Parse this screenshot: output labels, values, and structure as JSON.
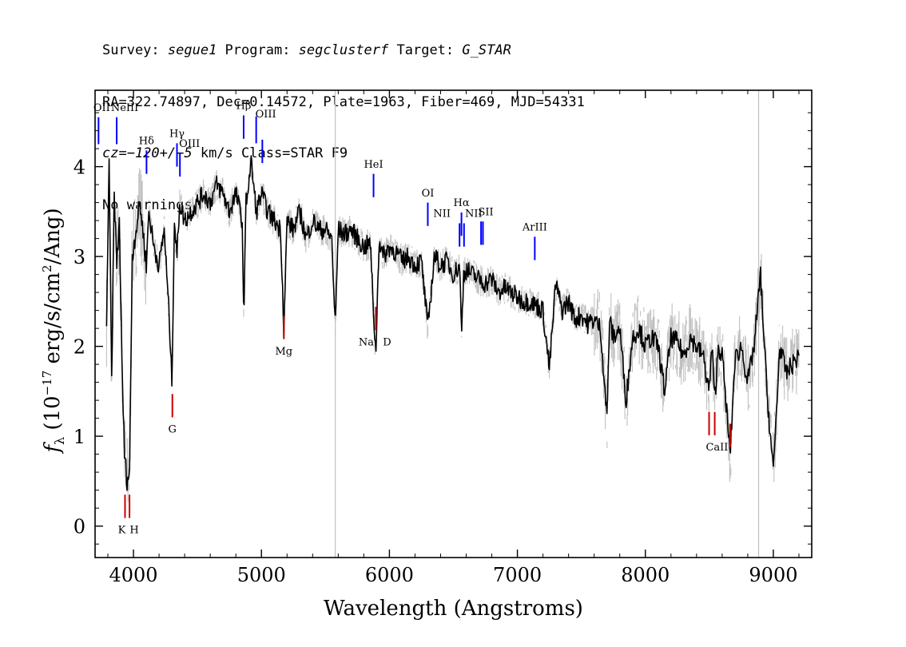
{
  "header": {
    "line1": {
      "survey_label": "Survey: ",
      "survey": "segue1",
      "program_label": " Program: ",
      "program": "segclusterf",
      "target_label": " Target: ",
      "target": "G_STAR"
    },
    "line2": "RA=322.74897, Dec=0.14572, Plate=1963, Fiber=469, MJD=54331",
    "line3": {
      "cz": "cz=−120+/−5",
      "units_class": " km/s Class=STAR F9"
    },
    "line4": "No warnings."
  },
  "chart_data": {
    "type": "line",
    "xlabel": "Wavelength (Angstroms)",
    "ylabel_parts": [
      "f",
      "λ",
      " (10",
      "−17",
      " erg/s/cm",
      "2",
      "/Ang)"
    ],
    "xlim": [
      3700,
      9300
    ],
    "ylim": [
      -0.35,
      4.85
    ],
    "x_ticks": [
      4000,
      5000,
      6000,
      7000,
      8000,
      9000
    ],
    "y_ticks": [
      0,
      1,
      2,
      3,
      4
    ],
    "vertical_lines": [
      5577,
      8885
    ],
    "colors": {
      "flux": "#000000",
      "error_band": "#c0c0c0",
      "emission": "#0000ff",
      "absorption": "#cc0000",
      "grid": "#c0c0c0"
    },
    "series": [
      {
        "x": [
          3790,
          3810,
          3830,
          3850,
          3870,
          3890,
          3910,
          3930,
          3950,
          3970,
          3990,
          4020,
          4050,
          4080,
          4100,
          4120,
          4160,
          4200,
          4240,
          4280,
          4300,
          4320,
          4340,
          4360,
          4400,
          4450,
          4500,
          4550,
          4600,
          4650,
          4700,
          4750,
          4800,
          4850,
          4861,
          4880,
          4920,
          4960,
          5000,
          5050,
          5100,
          5150,
          5175,
          5200,
          5250,
          5300,
          5350,
          5400,
          5450,
          5500,
          5550,
          5577,
          5600,
          5650,
          5700,
          5750,
          5800,
          5850,
          5893,
          5920,
          5950,
          6000,
          6050,
          6100,
          6150,
          6200,
          6250,
          6300,
          6350,
          6400,
          6450,
          6500,
          6550,
          6563,
          6580,
          6600,
          6650,
          6700,
          6750,
          6800,
          6850,
          6900,
          6950,
          7000,
          7050,
          7100,
          7150,
          7200,
          7250,
          7300,
          7350,
          7400,
          7450,
          7500,
          7550,
          7600,
          7650,
          7700,
          7720,
          7750,
          7800,
          7850,
          7900,
          7950,
          8000,
          8050,
          8100,
          8150,
          8200,
          8250,
          8300,
          8350,
          8400,
          8450,
          8498,
          8520,
          8542,
          8570,
          8600,
          8662,
          8700,
          8750,
          8800,
          8850,
          8900,
          8950,
          9000,
          9050,
          9100,
          9150,
          9200
        ],
        "y": [
          2.3,
          4.0,
          1.6,
          3.7,
          2.9,
          3.4,
          1.8,
          0.8,
          0.5,
          0.6,
          3.0,
          3.3,
          3.6,
          3.2,
          2.9,
          3.5,
          3.1,
          2.9,
          3.3,
          2.3,
          1.6,
          3.4,
          3.0,
          3.6,
          3.4,
          3.5,
          3.6,
          3.7,
          3.6,
          3.8,
          3.7,
          3.5,
          3.7,
          3.4,
          2.3,
          3.6,
          4.05,
          3.5,
          3.7,
          3.5,
          3.4,
          3.3,
          2.2,
          3.4,
          3.3,
          3.5,
          3.2,
          3.4,
          3.3,
          3.3,
          3.2,
          2.2,
          3.3,
          3.25,
          3.3,
          3.2,
          3.1,
          3.15,
          1.9,
          3.2,
          3.0,
          3.1,
          3.05,
          2.95,
          3.0,
          2.9,
          2.95,
          2.2,
          3.0,
          2.9,
          2.95,
          2.8,
          2.9,
          2.1,
          2.8,
          2.85,
          2.8,
          2.75,
          2.7,
          2.75,
          2.6,
          2.65,
          2.6,
          2.55,
          2.5,
          2.5,
          2.45,
          2.4,
          1.75,
          2.7,
          2.4,
          2.5,
          2.3,
          2.35,
          2.25,
          2.3,
          2.2,
          1.2,
          2.3,
          2.1,
          2.2,
          1.4,
          2.1,
          2.2,
          2.0,
          2.1,
          2.0,
          1.5,
          2.1,
          2.05,
          1.9,
          2.1,
          2.0,
          1.9,
          1.5,
          2.0,
          1.4,
          2.0,
          1.9,
          0.8,
          1.85,
          2.0,
          1.6,
          2.0,
          2.8,
          1.5,
          0.6,
          2.0,
          1.7,
          1.8,
          1.9
        ]
      }
    ],
    "line_labels": {
      "emission": [
        {
          "label": "OII",
          "wave": 3727,
          "label_y": 4.62,
          "line_top": 4.55,
          "line_bottom": 4.25
        },
        {
          "label": "NeIII",
          "wave": 3869,
          "label_y": 4.62,
          "line_top": 4.55,
          "line_bottom": 4.25
        },
        {
          "label": "Hδ",
          "wave": 4102,
          "label_y": 4.25,
          "line_top": 4.18,
          "line_bottom": 3.92
        },
        {
          "label": "Hγ",
          "wave": 4340,
          "label_y": 4.33,
          "line_top": 4.26,
          "line_bottom": 4.0
        },
        {
          "label": "OIII",
          "wave": 4363,
          "label_y": 4.22,
          "line_top": 4.15,
          "line_bottom": 3.89
        },
        {
          "label": "Hβ",
          "wave": 4861,
          "label_y": 4.64,
          "line_top": 4.57,
          "line_bottom": 4.31
        },
        {
          "label": "OIII",
          "wave": 4959,
          "label_y": 4.55,
          "line_top": 4.56,
          "line_bottom": 4.26
        },
        {
          "label": "OIII",
          "wave": 5007,
          "label_y": 4.55,
          "line_top": 4.3,
          "line_bottom": 4.04
        },
        {
          "label": "HeI",
          "wave": 5876,
          "label_y": 3.99,
          "line_top": 3.92,
          "line_bottom": 3.66
        },
        {
          "label": "OI",
          "wave": 6300,
          "label_y": 3.67,
          "line_top": 3.6,
          "line_bottom": 3.34
        },
        {
          "label": "NII",
          "wave": 6548,
          "label_y": 3.44,
          "line_top": 3.37,
          "line_bottom": 3.11
        },
        {
          "label": "Hα",
          "wave": 6563,
          "label_y": 3.56,
          "line_top": 3.49,
          "line_bottom": 3.23
        },
        {
          "label": "NII",
          "wave": 6583,
          "label_y": 3.44,
          "line_top": 3.37,
          "line_bottom": 3.11
        },
        {
          "label": "SII",
          "wave": 6716,
          "label_y": 3.46,
          "line_top": 3.39,
          "line_bottom": 3.13
        },
        {
          "label": "SII",
          "wave": 6731,
          "label_y": 3.46,
          "line_top": 3.39,
          "line_bottom": 3.13
        },
        {
          "label": "ArIII",
          "wave": 7136,
          "label_y": 3.29,
          "line_top": 3.22,
          "line_bottom": 2.96
        }
      ],
      "absorption": [
        {
          "label": "K",
          "wave": 3934,
          "label_y": -0.08,
          "line_top": 0.35,
          "line_bottom": 0.09
        },
        {
          "label": "H",
          "wave": 3969,
          "label_y": -0.08,
          "line_top": 0.35,
          "line_bottom": 0.09
        },
        {
          "label": "G",
          "wave": 4304,
          "label_y": 1.04,
          "line_top": 1.47,
          "line_bottom": 1.21
        },
        {
          "label": "Mg",
          "wave": 5175,
          "label_y": 1.91,
          "line_top": 2.34,
          "line_bottom": 2.08
        },
        {
          "label": "Na",
          "wave": 5894,
          "label_y": 2.01,
          "line_top": 2.44,
          "line_bottom": 2.18
        },
        {
          "label": "D",
          "wave": 5894,
          "label_y": 2.01
        },
        {
          "label": "CaII",
          "wave": 8498,
          "label_y": 0.84,
          "line_top": 1.27,
          "line_bottom": 1.01
        },
        {
          "label": "CaII",
          "wave": 8542,
          "label_y": 0.84,
          "line_top": 1.27,
          "line_bottom": 1.01
        },
        {
          "label": "CaII",
          "wave": 8662,
          "label_y": 0.84,
          "line_top": 1.14,
          "line_bottom": 0.88
        }
      ]
    }
  }
}
